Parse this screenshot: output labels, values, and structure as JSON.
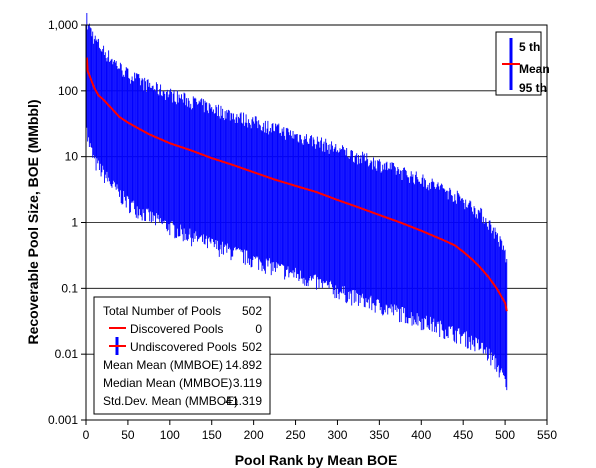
{
  "chart_data": {
    "type": "line",
    "xlabel": "Pool Rank by Mean BOE",
    "ylabel": "Recoverable Pool Size,  BOE (MMbbl)",
    "xlim": [
      0,
      550
    ],
    "ylim": [
      0.001,
      1000
    ],
    "yscale": "log",
    "grid": "horizontal",
    "x_ticks": [
      "0",
      "50",
      "100",
      "150",
      "200",
      "250",
      "300",
      "350",
      "400",
      "450",
      "500",
      "550"
    ],
    "y_ticks": [
      "0.001",
      "0.01",
      "0.1",
      "1",
      "10",
      "100",
      "1,000"
    ],
    "legend": {
      "placement": "top-right",
      "labels": [
        "5 th",
        "Mean",
        "95 th"
      ]
    },
    "series": [
      {
        "name": "Mean",
        "color": "#ff0000",
        "points": [
          [
            1,
            320
          ],
          [
            2,
            200
          ],
          [
            5,
            160
          ],
          [
            10,
            110
          ],
          [
            15,
            85
          ],
          [
            20,
            75
          ],
          [
            30,
            55
          ],
          [
            40,
            40
          ],
          [
            50,
            33
          ],
          [
            60,
            28
          ],
          [
            75,
            22
          ],
          [
            100,
            16
          ],
          [
            125,
            12.5
          ],
          [
            150,
            9.5
          ],
          [
            175,
            7.5
          ],
          [
            200,
            5.8
          ],
          [
            225,
            4.5
          ],
          [
            250,
            3.6
          ],
          [
            275,
            2.9
          ],
          [
            300,
            2.2
          ],
          [
            325,
            1.7
          ],
          [
            350,
            1.3
          ],
          [
            375,
            1.0
          ],
          [
            400,
            0.75
          ],
          [
            425,
            0.55
          ],
          [
            440,
            0.45
          ],
          [
            450,
            0.36
          ],
          [
            460,
            0.28
          ],
          [
            470,
            0.21
          ],
          [
            480,
            0.15
          ],
          [
            490,
            0.1
          ],
          [
            500,
            0.06
          ],
          [
            502,
            0.045
          ]
        ]
      },
      {
        "name": "5 th",
        "color": "#0000ff",
        "points": [
          [
            1,
            1500
          ],
          [
            2,
            1000
          ],
          [
            5,
            900
          ],
          [
            10,
            620
          ],
          [
            20,
            420
          ],
          [
            30,
            310
          ],
          [
            40,
            230
          ],
          [
            50,
            180
          ],
          [
            75,
            120
          ],
          [
            100,
            90
          ],
          [
            125,
            70
          ],
          [
            150,
            55
          ],
          [
            175,
            43
          ],
          [
            200,
            34
          ],
          [
            225,
            27
          ],
          [
            250,
            21
          ],
          [
            275,
            17
          ],
          [
            300,
            13
          ],
          [
            325,
            10
          ],
          [
            350,
            7.8
          ],
          [
            375,
            6.0
          ],
          [
            400,
            4.5
          ],
          [
            425,
            3.3
          ],
          [
            450,
            2.2
          ],
          [
            470,
            1.4
          ],
          [
            480,
            1.0
          ],
          [
            490,
            0.65
          ],
          [
            500,
            0.35
          ],
          [
            502,
            0.25
          ]
        ]
      },
      {
        "name": "95 th",
        "color": "#0000ff",
        "points": [
          [
            1,
            50
          ],
          [
            2,
            25
          ],
          [
            5,
            18
          ],
          [
            10,
            11
          ],
          [
            20,
            7.5
          ],
          [
            30,
            5.0
          ],
          [
            40,
            3.5
          ],
          [
            50,
            2.6
          ],
          [
            75,
            1.6
          ],
          [
            100,
            1.1
          ],
          [
            125,
            0.8
          ],
          [
            150,
            0.6
          ],
          [
            175,
            0.46
          ],
          [
            200,
            0.35
          ],
          [
            225,
            0.27
          ],
          [
            250,
            0.21
          ],
          [
            275,
            0.16
          ],
          [
            300,
            0.12
          ],
          [
            325,
            0.09
          ],
          [
            350,
            0.07
          ],
          [
            375,
            0.055
          ],
          [
            400,
            0.042
          ],
          [
            425,
            0.032
          ],
          [
            450,
            0.024
          ],
          [
            470,
            0.017
          ],
          [
            480,
            0.013
          ],
          [
            490,
            0.009
          ],
          [
            500,
            0.005
          ],
          [
            502,
            0.003
          ]
        ]
      }
    ]
  },
  "stats_box": {
    "rows": [
      {
        "label": "Total Number of Pools",
        "value": "502"
      },
      {
        "label": "Discovered Pools",
        "value": "0"
      },
      {
        "label": "Undiscovered Pools",
        "value": "502"
      },
      {
        "label": "Mean Mean (MMBOE)",
        "value": "14.892"
      },
      {
        "label": "Median Mean (MMBOE)",
        "value": "3.119"
      },
      {
        "label": "Std.Dev. Mean (MMBOE)",
        "value": "41.319"
      }
    ]
  },
  "colors": {
    "mean_line": "#ff0000",
    "range_bars": "#0000ff",
    "grid": "#000000"
  }
}
